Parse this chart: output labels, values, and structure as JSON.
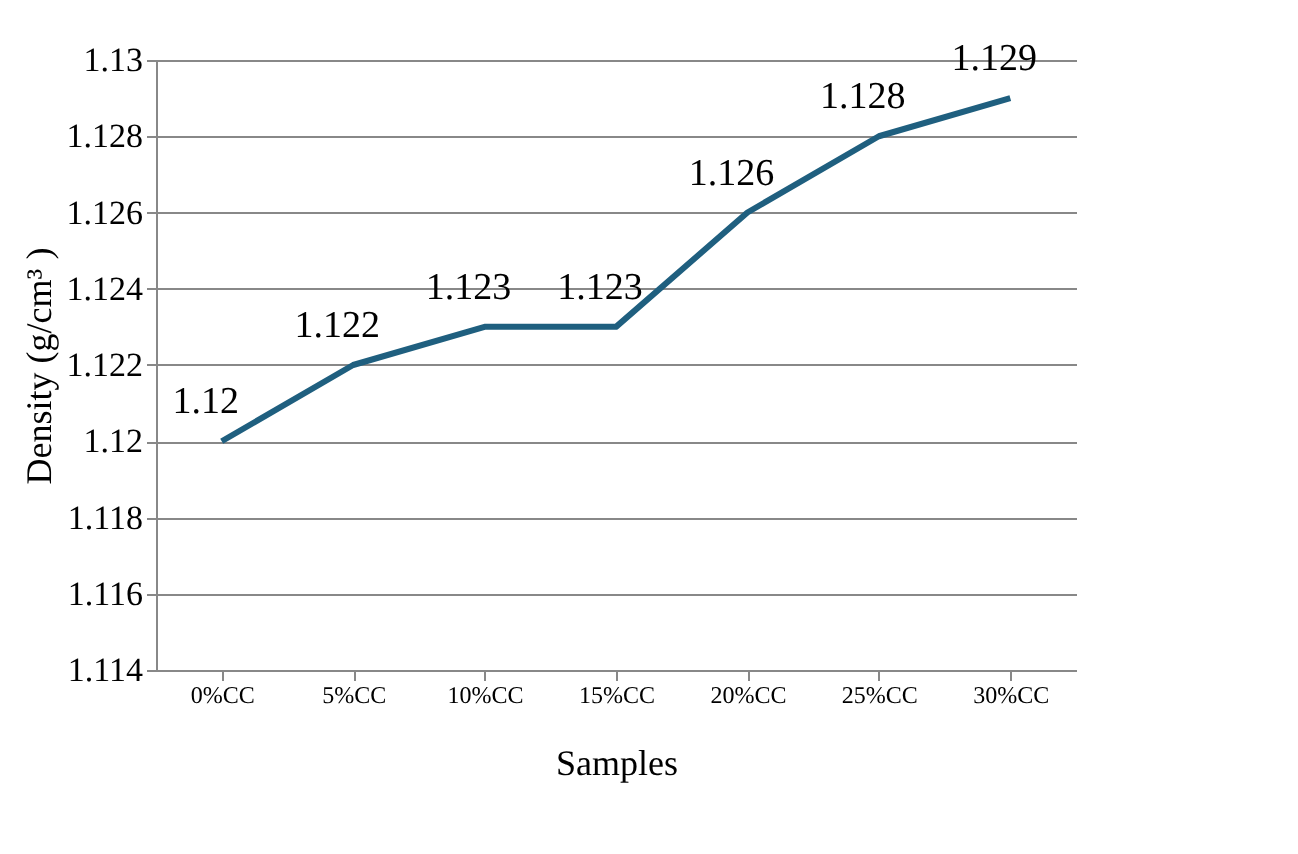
{
  "chart_data": {
    "type": "line",
    "xlabel": "Samples",
    "ylabel": "Density (g/cm³ )",
    "categories": [
      "0%CC",
      "5%CC",
      "10%CC",
      "15%CC",
      "20%CC",
      "25%CC",
      "30%CC"
    ],
    "series": [
      {
        "color": "#1f5f7f",
        "values": [
          1.12,
          1.122,
          1.123,
          1.123,
          1.126,
          1.128,
          1.129
        ]
      }
    ],
    "ylim": [
      1.114,
      1.13
    ],
    "yticks": [
      1.114,
      1.116,
      1.118,
      1.12,
      1.122,
      1.124,
      1.126,
      1.128,
      1.13
    ],
    "grid": "y",
    "data_labels": true,
    "legend": false,
    "marker": "none",
    "line_style": "solid"
  }
}
